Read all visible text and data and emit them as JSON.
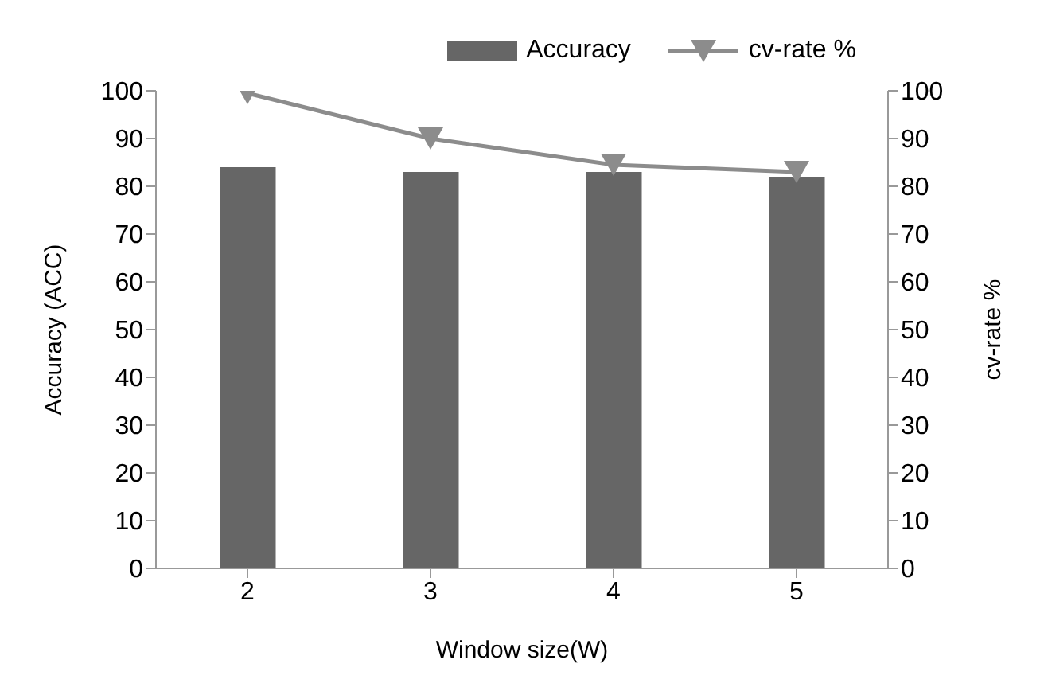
{
  "chart_data": {
    "type": "bar",
    "xlabel": "Window size(W)",
    "ylabel": "Accuracy (ACC)",
    "y2label": "cv-rate %",
    "categories": [
      "2",
      "3",
      "4",
      "5"
    ],
    "series": [
      {
        "name": "Accuracy",
        "color": "#666666",
        "values": [
          84,
          83,
          83,
          82
        ]
      },
      {
        "name": "cv-rate %",
        "type": "line",
        "axis": "y2",
        "color": "#8c8c8c",
        "marker": "triangle",
        "values": [
          99.5,
          90,
          84.5,
          83
        ]
      }
    ],
    "ylim": [
      0,
      100
    ],
    "yticks": [
      0,
      10,
      20,
      30,
      40,
      50,
      60,
      70,
      80,
      90,
      100
    ],
    "y2lim": [
      0,
      100
    ],
    "y2ticks": [
      0,
      10,
      20,
      30,
      40,
      50,
      60,
      70,
      80,
      90,
      100
    ],
    "grid": false,
    "legend": "top right"
  }
}
